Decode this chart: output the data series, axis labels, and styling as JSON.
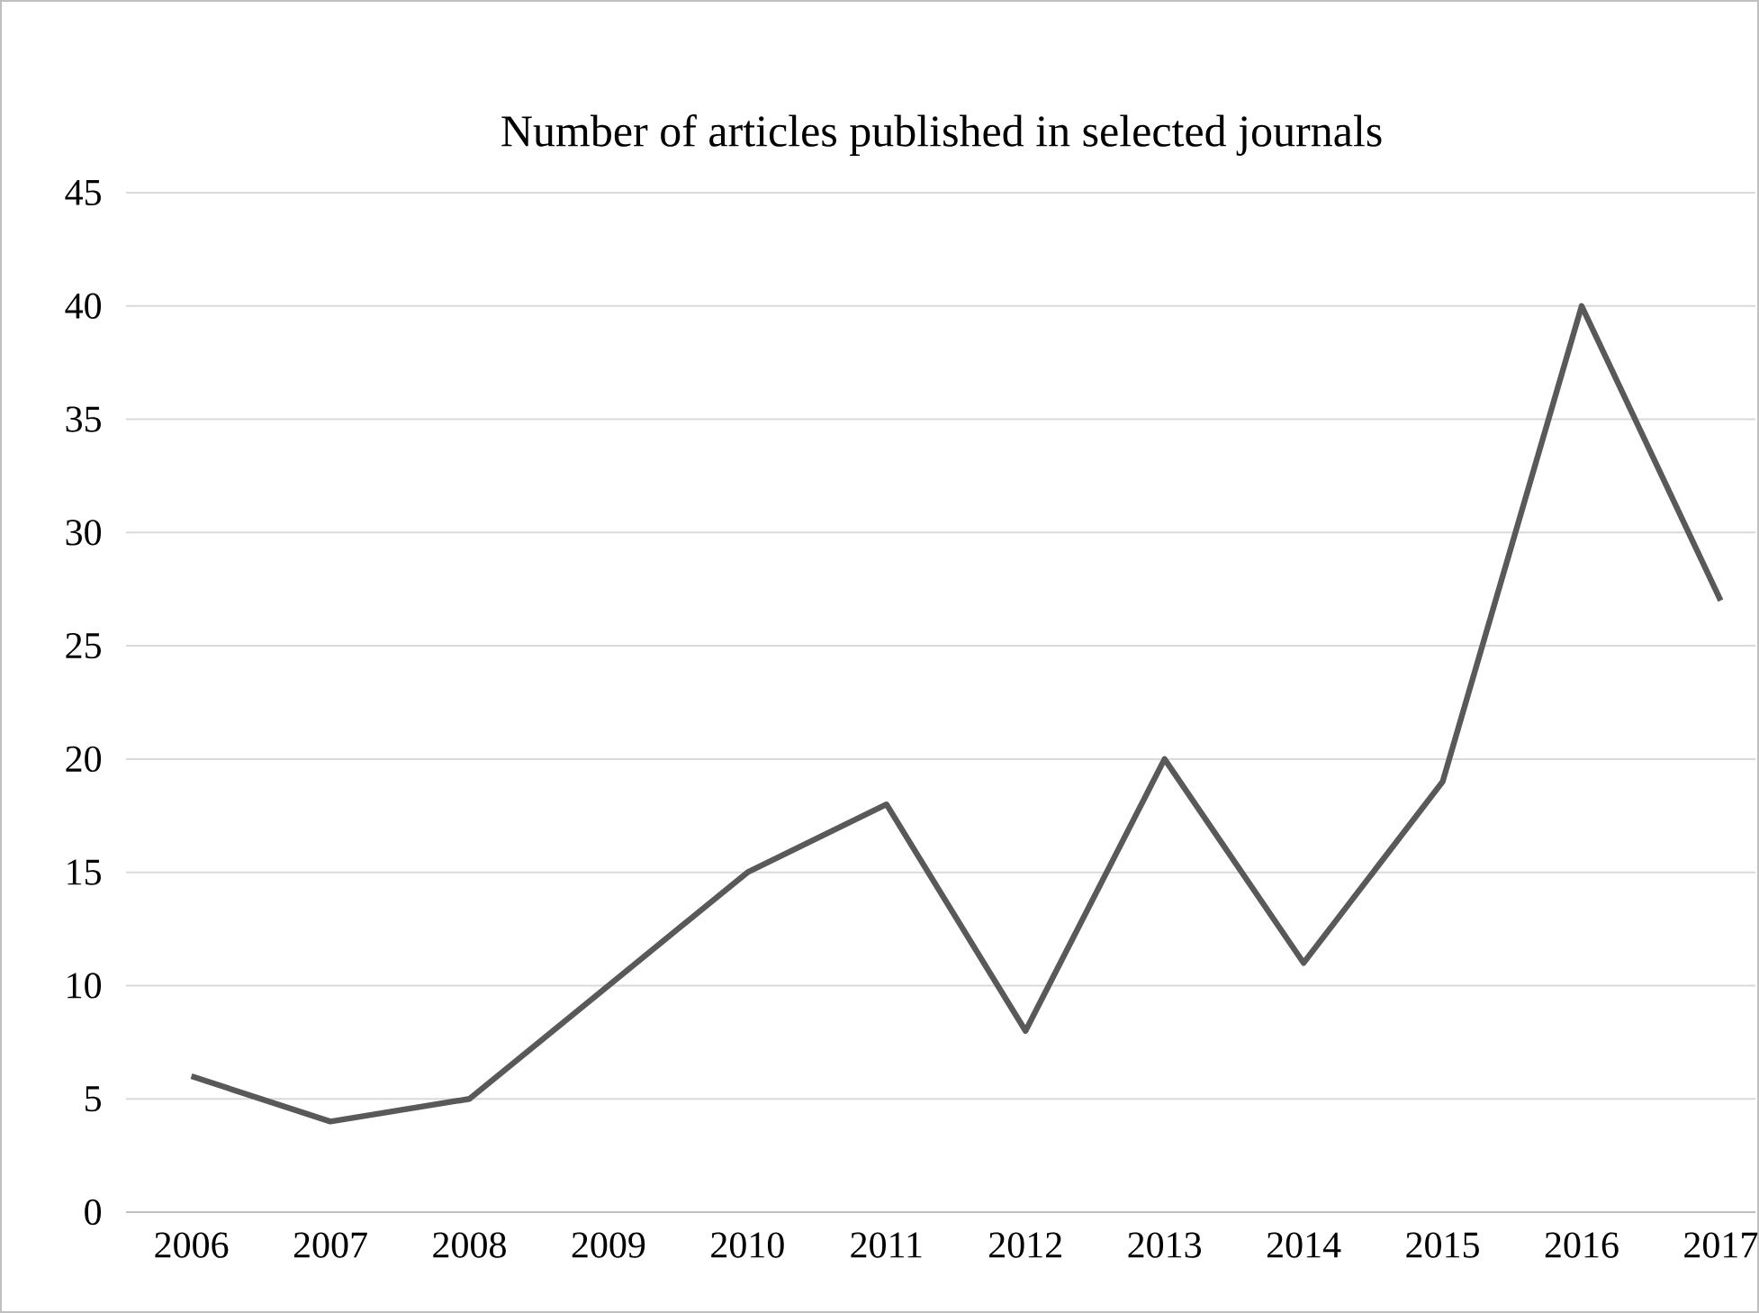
{
  "chart_data": {
    "type": "line",
    "title": "Number of articles published in selected journals",
    "categories": [
      "2006",
      "2007",
      "2008",
      "2009",
      "2010",
      "2011",
      "2012",
      "2013",
      "2014",
      "2015",
      "2016",
      "2017"
    ],
    "values": [
      6,
      4,
      5,
      10,
      15,
      18,
      8,
      20,
      11,
      19,
      40,
      27
    ],
    "color": "#595959",
    "ylim": [
      0,
      45
    ],
    "yticks": [
      0,
      5,
      10,
      15,
      20,
      25,
      30,
      35,
      40,
      45
    ],
    "grid": "y",
    "marker": "none",
    "line_style": "solid"
  }
}
